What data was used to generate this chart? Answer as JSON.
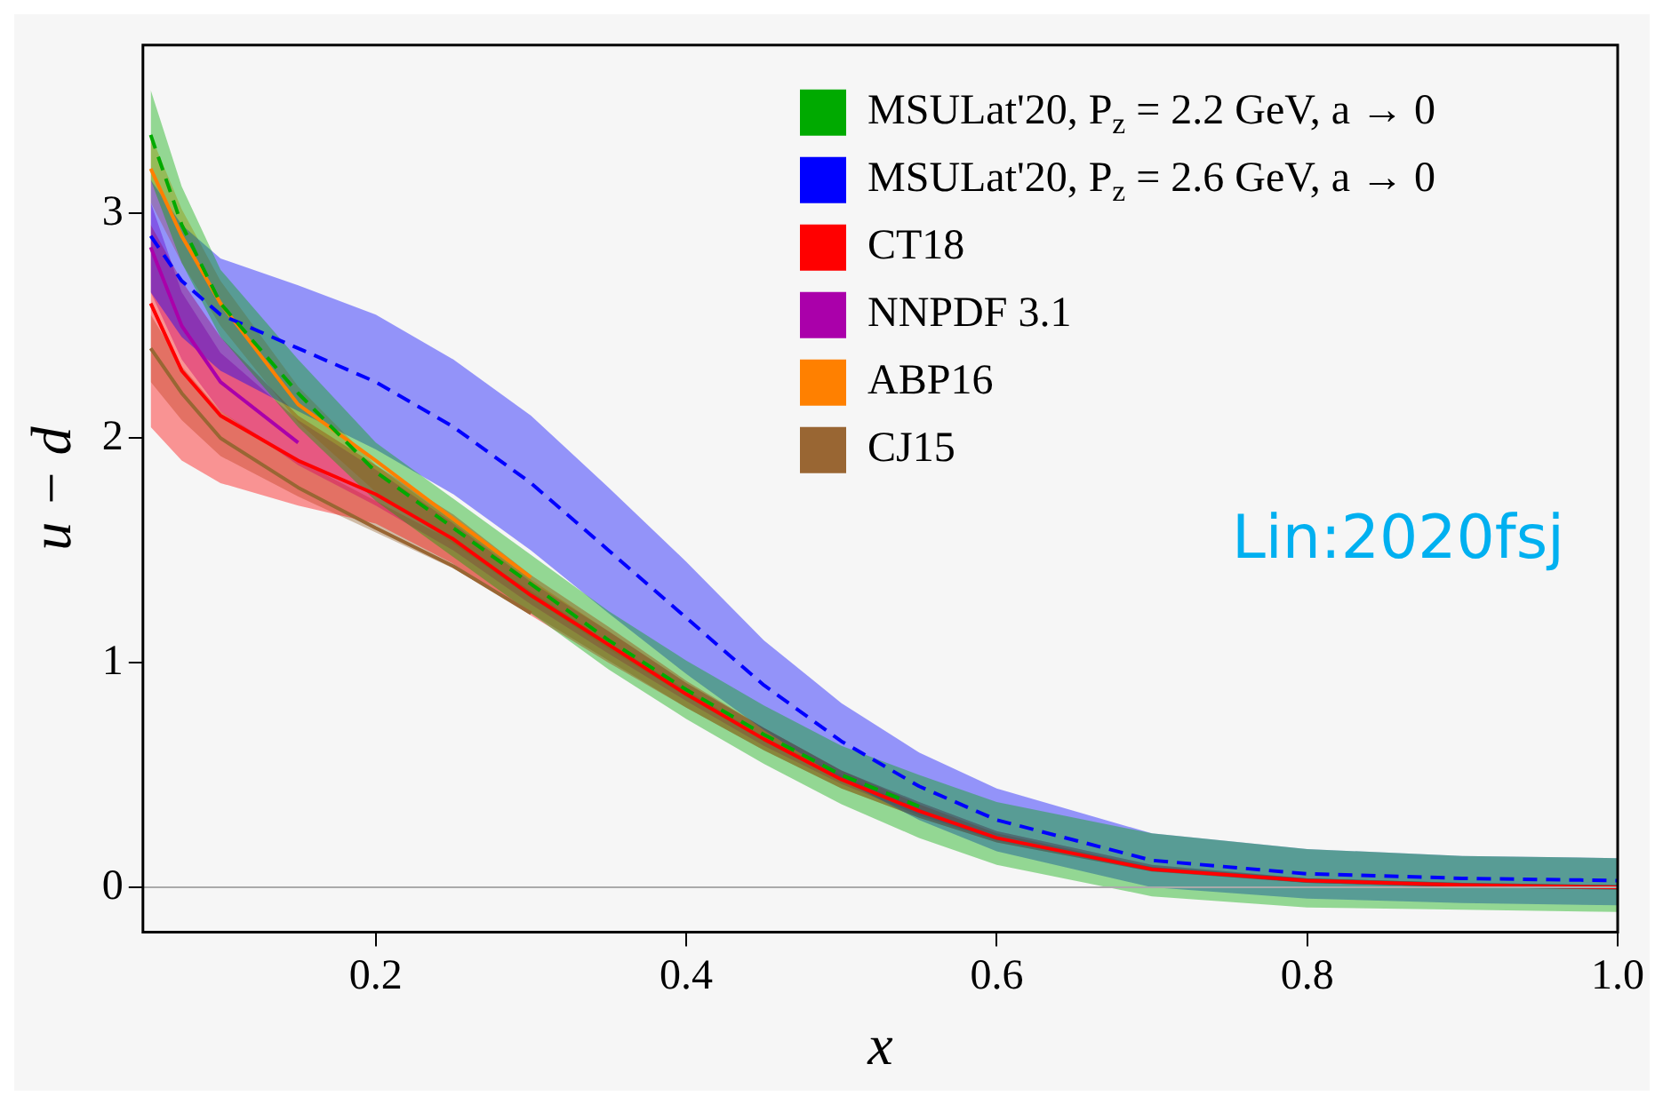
{
  "chart_data": {
    "type": "line",
    "xlabel": "x",
    "ylabel": "u − d",
    "annotations": [
      "Lin:2020fsj"
    ],
    "x": [
      0.055,
      0.075,
      0.1,
      0.15,
      0.2,
      0.25,
      0.3,
      0.35,
      0.4,
      0.45,
      0.5,
      0.55,
      0.6,
      0.7,
      0.8,
      0.9,
      1.0
    ],
    "series": [
      {
        "name": "MSULat'20, P$_{z}$ = 2.2 GeV, a → 0",
        "color": "#00aa00",
        "line_style": "dashed",
        "values": [
          3.35,
          2.95,
          2.6,
          2.2,
          1.85,
          1.6,
          1.35,
          1.1,
          0.88,
          0.68,
          0.5,
          0.36,
          null,
          null,
          null,
          null,
          null
        ],
        "lower": [
          3.15,
          2.78,
          2.45,
          2.05,
          1.72,
          1.47,
          1.22,
          0.97,
          0.75,
          0.55,
          0.37,
          0.22,
          0.1,
          -0.04,
          -0.09,
          -0.1,
          -0.11
        ],
        "upper": [
          3.55,
          3.12,
          2.75,
          2.35,
          1.98,
          1.73,
          1.48,
          1.23,
          1.01,
          0.81,
          0.63,
          0.5,
          0.38,
          0.24,
          0.17,
          0.14,
          0.13
        ]
      },
      {
        "name": "MSULat'20, P$_{z}$ = 2.6 GeV, a → 0",
        "color": "#0000ff",
        "line_style": "dashed",
        "values": [
          2.9,
          2.7,
          2.55,
          2.4,
          2.25,
          2.05,
          1.8,
          1.5,
          1.2,
          0.9,
          0.65,
          0.45,
          0.3,
          0.12,
          0.06,
          0.04,
          0.03
        ],
        "lower": [
          2.65,
          2.45,
          2.3,
          2.12,
          1.95,
          1.75,
          1.5,
          1.22,
          0.95,
          0.7,
          0.48,
          0.3,
          0.16,
          0.0,
          -0.05,
          -0.07,
          -0.08
        ],
        "upper": [
          3.15,
          2.95,
          2.8,
          2.68,
          2.55,
          2.35,
          2.1,
          1.78,
          1.45,
          1.1,
          0.82,
          0.6,
          0.44,
          0.24,
          0.17,
          0.14,
          0.13
        ]
      },
      {
        "name": "CT18",
        "color": "#ff0000",
        "line_style": "solid",
        "values": [
          2.6,
          2.3,
          2.1,
          1.9,
          1.75,
          1.55,
          1.3,
          1.08,
          0.86,
          0.66,
          0.48,
          0.34,
          0.22,
          0.08,
          0.03,
          0.01,
          0.0
        ],
        "lower": [
          2.05,
          1.9,
          1.8,
          1.7,
          1.62,
          1.44,
          1.21,
          1.0,
          0.8,
          0.61,
          0.44,
          0.31,
          0.2,
          0.07,
          0.02,
          0.0,
          -0.01
        ],
        "upper": [
          2.95,
          2.7,
          2.45,
          2.1,
          1.88,
          1.66,
          1.39,
          1.16,
          0.92,
          0.71,
          0.52,
          0.37,
          0.24,
          0.09,
          0.04,
          0.02,
          0.01
        ]
      },
      {
        "name": "NNPDF 3.1",
        "color": "#aa00aa",
        "line_style": "solid",
        "values": [
          2.85,
          2.5,
          2.25,
          1.98,
          null,
          null,
          null,
          null,
          null,
          null,
          null,
          null,
          null,
          null,
          null,
          null,
          null
        ],
        "lower": [
          2.65,
          2.35,
          2.12,
          1.88,
          1.7,
          1.5,
          1.26,
          1.04,
          0.83,
          0.63,
          0.46,
          0.32,
          0.21,
          0.08,
          0.02,
          0.0,
          -0.01
        ],
        "upper": [
          3.05,
          2.65,
          2.38,
          2.08,
          1.86,
          1.62,
          1.36,
          1.14,
          0.91,
          0.71,
          0.52,
          0.38,
          0.25,
          0.1,
          0.04,
          0.02,
          0.01
        ]
      },
      {
        "name": "ABP16",
        "color": "#ff8000",
        "line_style": "solid",
        "values": [
          3.2,
          2.9,
          2.6,
          2.15,
          1.9,
          1.64,
          1.38,
          null,
          null,
          null,
          null,
          null,
          null,
          null,
          null,
          null,
          null
        ],
        "lower": [
          3.05,
          2.78,
          2.5,
          2.07,
          1.76,
          1.53,
          1.29,
          1.06,
          0.85,
          0.65,
          0.48,
          0.34,
          0.23,
          0.08,
          0.02,
          0.0,
          -0.01
        ],
        "upper": [
          3.35,
          3.02,
          2.7,
          2.23,
          1.88,
          1.63,
          1.37,
          1.14,
          0.91,
          0.71,
          0.52,
          0.38,
          0.25,
          0.1,
          0.04,
          0.02,
          0.01
        ]
      },
      {
        "name": "CJ15",
        "color": "#996633",
        "line_style": "solid",
        "values": [
          2.4,
          2.2,
          2.0,
          1.78,
          1.6,
          1.43,
          1.22,
          null,
          null,
          null,
          null,
          null,
          null,
          null,
          null,
          null,
          null
        ],
        "lower": [
          2.25,
          2.08,
          1.92,
          1.74,
          1.58,
          1.42,
          1.22,
          1.01,
          0.8,
          0.61,
          0.44,
          0.31,
          0.2,
          0.07,
          0.02,
          0.0,
          -0.01
        ],
        "upper": [
          2.55,
          2.32,
          2.12,
          1.9,
          1.72,
          1.54,
          1.32,
          1.09,
          0.88,
          0.67,
          0.5,
          0.35,
          0.22,
          0.09,
          0.04,
          0.02,
          0.01
        ]
      }
    ],
    "xlim": [
      0.05,
      1.0
    ],
    "xticks": [
      0.2,
      0.4,
      0.6,
      0.8,
      {
        "value": 1,
        "label": "1.0"
      }
    ],
    "ylim": [
      -0.2,
      3.75
    ],
    "yticks": [
      0,
      1,
      2,
      3
    ],
    "ref_lines": [
      {
        "axis": "y",
        "value": 0,
        "color": "#aaaaaa"
      }
    ],
    "grid": false,
    "legend": "top right",
    "marker": "none"
  }
}
